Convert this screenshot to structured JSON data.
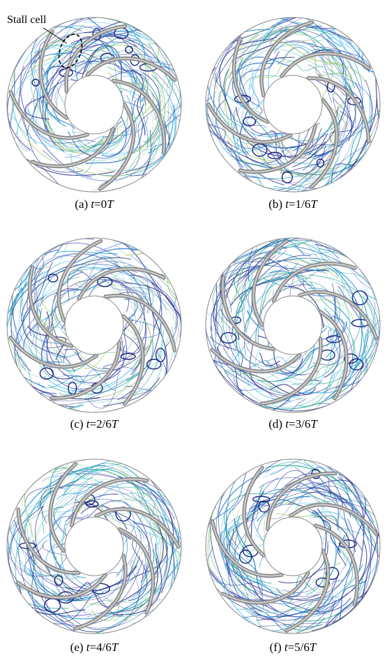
{
  "annotation": "Stall cell",
  "panels": [
    {
      "label": "(a)",
      "var": "t",
      "eq": "=0",
      "unit": "T"
    },
    {
      "label": "(b)",
      "var": "t",
      "eq": "=1/6",
      "unit": "T"
    },
    {
      "label": "(c)",
      "var": "t",
      "eq": "=2/6",
      "unit": "T"
    },
    {
      "label": "(d)",
      "var": "t",
      "eq": "=3/6",
      "unit": "T"
    },
    {
      "label": "(e)",
      "var": "t",
      "eq": "=4/6",
      "unit": "T"
    },
    {
      "label": "(f)",
      "var": "t",
      "eq": "=5/6",
      "unit": "T"
    }
  ]
}
